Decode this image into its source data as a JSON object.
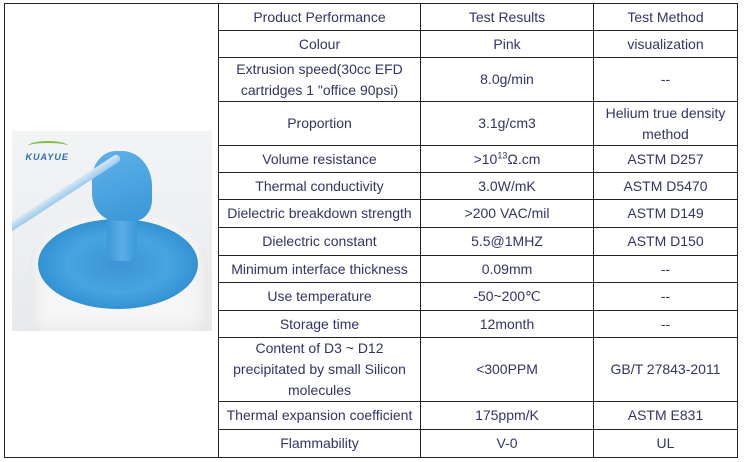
{
  "image": {
    "logo_text": "KUAYUE",
    "alt": "blue thermal paste in jar"
  },
  "header": {
    "performance": "Product Performance",
    "results": "Test Results",
    "method": "Test Method"
  },
  "rows": [
    {
      "performance": "Colour",
      "result": "Pink",
      "method": "visualization"
    },
    {
      "performance": "Extrusion speed(30cc EFD cartridges 1 \"office 90psi)",
      "result": "8.0g/min",
      "method": "--"
    },
    {
      "performance": "Proportion",
      "result": "3.1g/cm3",
      "method": "Helium true density method"
    },
    {
      "performance": "Volume resistance",
      "result_base": ">10",
      "result_exp": "13",
      "result_unit": "Ω.cm",
      "method": "ASTM D257"
    },
    {
      "performance": "Thermal conductivity",
      "result": "3.0W/mK",
      "method": "ASTM D5470"
    },
    {
      "performance": "Dielectric breakdown strength",
      "result": ">200 VAC/mil",
      "method": "ASTM D149"
    },
    {
      "performance": "Dielectric constant",
      "result": "5.5@1MHZ",
      "method": "ASTM D150"
    },
    {
      "performance": "Minimum interface thickness",
      "result": "0.09mm",
      "method": "--"
    },
    {
      "performance": "Use temperature",
      "result": "-50~200℃",
      "method": "--"
    },
    {
      "performance": "Storage time",
      "result": "12month",
      "method": "--"
    },
    {
      "performance": "Content of D3 ~ D12 precipitated by small Silicon molecules",
      "result": "<300PPM",
      "method": "GB/T 27843-2011"
    },
    {
      "performance": "Thermal expansion coefficient",
      "result": "175ppm/K",
      "method": "ASTM E831"
    },
    {
      "performance": "Flammability",
      "result": "V-0",
      "method": "UL"
    }
  ]
}
